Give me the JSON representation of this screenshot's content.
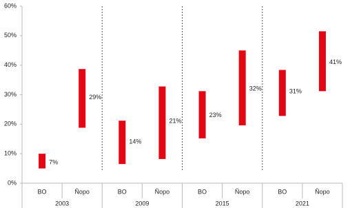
{
  "chart_data": {
    "type": "range-bar",
    "color": "#e30613",
    "ylim": [
      0,
      60
    ],
    "yticks": [
      {
        "value": 0,
        "label": "0%"
      },
      {
        "value": 10,
        "label": "10%"
      },
      {
        "value": 20,
        "label": "20%"
      },
      {
        "value": 30,
        "label": "30%"
      },
      {
        "value": 40,
        "label": "40%"
      },
      {
        "value": 50,
        "label": "50%"
      },
      {
        "value": 60,
        "label": "60%"
      }
    ],
    "group_separators": true,
    "groups": [
      {
        "name": "2003",
        "categories": [
          "BO",
          "Ñopo"
        ],
        "low": [
          5,
          18.8
        ],
        "high": [
          10,
          38.7
        ],
        "values": [
          7,
          29
        ],
        "value_labels": [
          "7%",
          "29%"
        ]
      },
      {
        "name": "2009",
        "categories": [
          "BO",
          "Ñopo"
        ],
        "low": [
          6.5,
          8.2
        ],
        "high": [
          21.2,
          32.8
        ],
        "values": [
          14,
          21
        ],
        "value_labels": [
          "14%",
          "21%"
        ]
      },
      {
        "name": "2015",
        "categories": [
          "BO",
          "Ñopo"
        ],
        "low": [
          15.2,
          19.6
        ],
        "high": [
          31.2,
          45
        ],
        "values": [
          23,
          32
        ],
        "value_labels": [
          "23%",
          "32%"
        ]
      },
      {
        "name": "2021",
        "categories": [
          "BO",
          "Ñopo"
        ],
        "low": [
          22.8,
          31.2
        ],
        "high": [
          38.4,
          51.5
        ],
        "values": [
          31,
          41
        ],
        "value_labels": [
          "31%",
          "41%"
        ]
      }
    ]
  }
}
